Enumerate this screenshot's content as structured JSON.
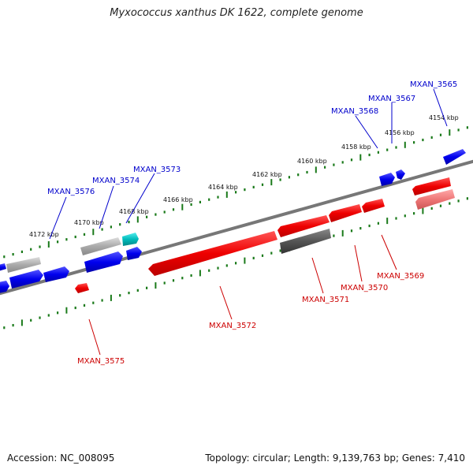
{
  "title": "Myxococcus xanthus DK 1622, complete genome",
  "footer": {
    "accession": "Accession: NC_008095",
    "summary": "Topology: circular; Length: 9,139,763 bp; Genes: 7,410"
  },
  "colors": {
    "forward": "#0000ee",
    "reverse": "#ee0000",
    "backbone": "#777777",
    "ticks": "#1a7a1a",
    "gray": "#aaaaaa",
    "darkgray": "#555555",
    "cyan": "#00bbbb",
    "pink": "#ee7777"
  },
  "scale": {
    "ticks": [
      "4154 kbp",
      "4156 kbp",
      "4158 kbp",
      "4160 kbp",
      "4162 kbp",
      "4164 kbp",
      "4166 kbp",
      "4168 kbp",
      "4170 kbp",
      "4172 kbp"
    ]
  },
  "genes": {
    "MXAN_3565": "MXAN_3565",
    "MXAN_3567": "MXAN_3567",
    "MXAN_3568": "MXAN_3568",
    "MXAN_3573": "MXAN_3573",
    "MXAN_3574": "MXAN_3574",
    "MXAN_3576": "MXAN_3576",
    "MXAN_3569": "MXAN_3569",
    "MXAN_3570": "MXAN_3570",
    "MXAN_3571": "MXAN_3571",
    "MXAN_3572": "MXAN_3572",
    "MXAN_3575": "MXAN_3575"
  }
}
